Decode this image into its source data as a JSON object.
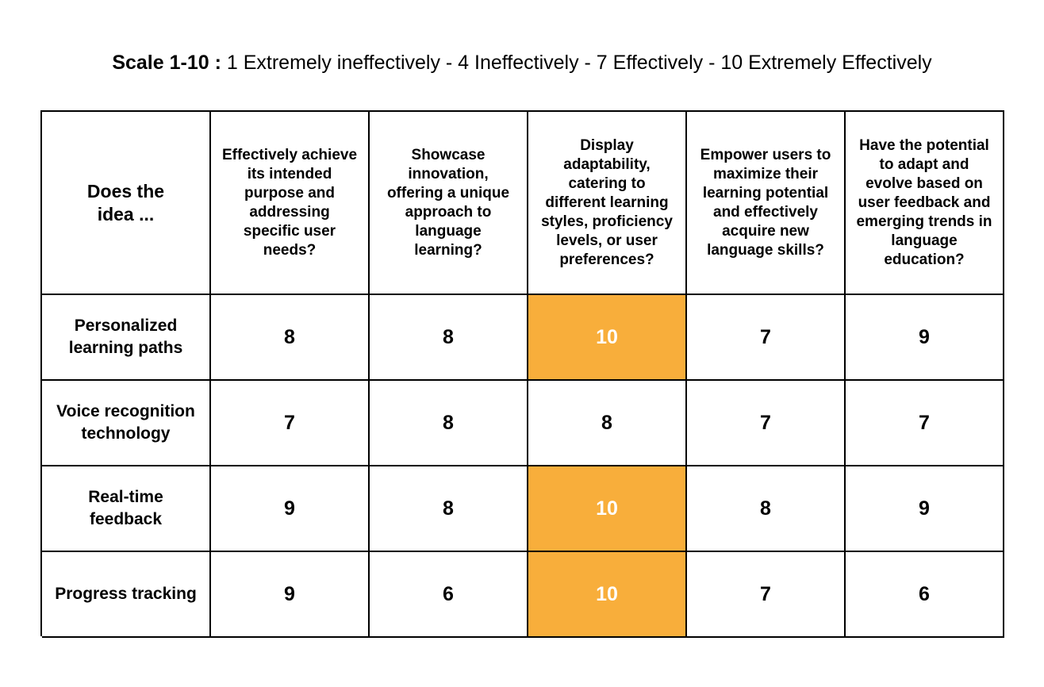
{
  "scale": {
    "prefix": "Scale 1-10 :",
    "text": "1 Extremely ineffectively - 4 Ineffectively - 7 Effectively - 10 Extremely Effectively"
  },
  "table": {
    "corner_label": "Does the idea ...",
    "columns": [
      "Effectively achieve its intended purpose and addressing specific user needs?",
      "Showcase innovation, offering a unique approach to language learning?",
      "Display adaptability, catering to different learning styles, proficiency levels, or user preferences?",
      "Empower users to maximize their learning potential and effectively acquire new language skills?",
      "Have the potential to adapt and evolve based on user feedback and emerging trends in language education?"
    ],
    "rows": [
      {
        "label": "Personalized learning paths",
        "scores": [
          "8",
          "8",
          "10",
          "7",
          "9"
        ]
      },
      {
        "label": "Voice recognition technology",
        "scores": [
          "7",
          "8",
          "8",
          "7",
          "7"
        ]
      },
      {
        "label": "Real-time feedback",
        "scores": [
          "9",
          "8",
          "10",
          "8",
          "9"
        ]
      },
      {
        "label": "Progress tracking",
        "scores": [
          "9",
          "6",
          "10",
          "7",
          "6"
        ]
      }
    ]
  },
  "colors": {
    "highlight": "#f8ae3b",
    "highlight_text": "#ffffff",
    "border": "#000000"
  }
}
